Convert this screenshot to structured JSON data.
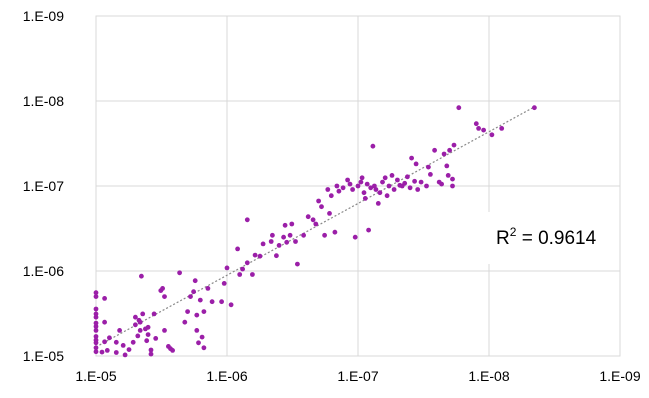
{
  "chart_data": {
    "type": "scatter",
    "title": "",
    "xlabel": "",
    "ylabel": "",
    "x_scale": "log-reversed",
    "y_scale": "log-reversed",
    "xlim": [
      1e-05,
      1e-09
    ],
    "ylim": [
      1e-05,
      1e-09
    ],
    "x_ticks": [
      "1.E-05",
      "1.E-06",
      "1.E-07",
      "1.E-08",
      "1.E-09"
    ],
    "y_ticks": [
      "1.E-05",
      "1.E-06",
      "1.E-07",
      "1.E-08",
      "1.E-09"
    ],
    "grid": true,
    "legend": "none",
    "marker_color": "#9b1fa8",
    "trendline": {
      "style": "dotted",
      "color": "#888888",
      "x_range": [
        1e-05,
        4.5e-09
      ]
    },
    "annotation": {
      "prefix": "R",
      "superscript": "2",
      "text": " = 0.9614"
    },
    "points": [
      [
        1e-05,
        8.9e-06
      ],
      [
        1e-05,
        8e-06
      ],
      [
        1e-05,
        7e-06
      ],
      [
        1e-05,
        6.5e-06
      ],
      [
        1e-05,
        5.9e-06
      ],
      [
        1e-05,
        5e-06
      ],
      [
        1e-05,
        4.5e-06
      ],
      [
        1e-05,
        4.1e-06
      ],
      [
        1e-05,
        3.5e-06
      ],
      [
        1e-05,
        3.2e-06
      ],
      [
        1e-05,
        2.8e-06
      ],
      [
        1e-05,
        2e-06
      ],
      [
        1e-05,
        1.8e-06
      ],
      [
        9e-06,
        9e-06
      ],
      [
        8.6e-06,
        6.8e-06
      ],
      [
        8.6e-06,
        4e-06
      ],
      [
        8.6e-06,
        2.1e-06
      ],
      [
        8.2e-06,
        8.6e-06
      ],
      [
        7.9e-06,
        6.1e-06
      ],
      [
        7e-06,
        9.1e-06
      ],
      [
        7e-06,
        6.9e-06
      ],
      [
        6.6e-06,
        5e-06
      ],
      [
        6.2e-06,
        7.5e-06
      ],
      [
        6e-06,
        9.7e-06
      ],
      [
        5.6e-06,
        8.4e-06
      ],
      [
        5.2e-06,
        6.9e-06
      ],
      [
        5e-06,
        4.3e-06
      ],
      [
        5e-06,
        3.5e-06
      ],
      [
        4.8e-06,
        5.8e-06
      ],
      [
        4.7e-06,
        3.8e-06
      ],
      [
        4.6e-06,
        4e-06
      ],
      [
        4.6e-06,
        5e-06
      ],
      [
        4.5e-06,
        1.15e-06
      ],
      [
        4.4e-06,
        3.2e-06
      ],
      [
        4.2e-06,
        4.8e-06
      ],
      [
        4.1e-06,
        6.6e-06
      ],
      [
        4e-06,
        4.6e-06
      ],
      [
        4e-06,
        5.6e-06
      ],
      [
        3.8e-06,
        8.5e-06
      ],
      [
        3.8e-06,
        9.5e-06
      ],
      [
        3.6e-06,
        3.2e-06
      ],
      [
        3.5e-06,
        6.2e-06
      ],
      [
        3.2e-06,
        1.7e-06
      ],
      [
        3.1e-06,
        1.6e-06
      ],
      [
        3e-06,
        2e-06
      ],
      [
        3e-06,
        5e-06
      ],
      [
        2.8e-06,
        7.7e-06
      ],
      [
        2.7e-06,
        8.2e-06
      ],
      [
        2.6e-06,
        8.6e-06
      ],
      [
        2.3e-06,
        1.05e-06
      ],
      [
        2.1e-06,
        4e-06
      ],
      [
        2e-06,
        3e-06
      ],
      [
        1.9e-06,
        2e-06
      ],
      [
        1.8e-06,
        1.75e-06
      ],
      [
        1.75e-06,
        1.3e-06
      ],
      [
        1.7e-06,
        3.3e-06
      ],
      [
        1.7e-06,
        5e-06
      ],
      [
        1.65e-06,
        7e-06
      ],
      [
        1.6e-06,
        2.2e-06
      ],
      [
        1.55e-06,
        6e-06
      ],
      [
        1.5e-06,
        3e-06
      ],
      [
        1.5e-06,
        8e-06
      ],
      [
        1.4e-06,
        1.6e-06
      ],
      [
        1.3e-06,
        2.3e-06
      ],
      [
        1.1e-06,
        2.3e-06
      ],
      [
        1.05e-06,
        1.4e-06
      ],
      [
        1e-06,
        9.2e-07
      ],
      [
        9.3e-07,
        2.5e-06
      ],
      [
        8.3e-07,
        5.5e-07
      ],
      [
        8e-07,
        1.1e-06
      ],
      [
        7.6e-07,
        9.5e-07
      ],
      [
        7e-07,
        8e-07
      ],
      [
        7e-07,
        2.5e-07
      ],
      [
        6.4e-07,
        1.1e-06
      ],
      [
        6.1e-07,
        6.5e-07
      ],
      [
        5.6e-07,
        6.7e-07
      ],
      [
        5.3e-07,
        4.8e-07
      ],
      [
        4.6e-07,
        4.5e-07
      ],
      [
        4.5e-07,
        3.8e-07
      ],
      [
        4.2e-07,
        6.6e-07
      ],
      [
        4e-07,
        5e-07
      ],
      [
        3.7e-07,
        4e-07
      ],
      [
        3.6e-07,
        2.9e-07
      ],
      [
        3.5e-07,
        4.6e-07
      ],
      [
        3.3e-07,
        3.8e-07
      ],
      [
        3.2e-07,
        2.8e-07
      ],
      [
        3e-07,
        4.5e-07
      ],
      [
        2.9e-07,
        8.3e-07
      ],
      [
        2.6e-07,
        3.8e-07
      ],
      [
        2.4e-07,
        2.3e-07
      ],
      [
        2.2e-07,
        2.5e-07
      ],
      [
        2.1e-07,
        2.8e-07
      ],
      [
        2e-07,
        1.5e-07
      ],
      [
        1.9e-07,
        1.75e-07
      ],
      [
        1.8e-07,
        3.8e-07
      ],
      [
        1.7e-07,
        1.1e-07
      ],
      [
        1.65e-07,
        2.1e-07
      ],
      [
        1.6e-07,
        1.3e-07
      ],
      [
        1.5e-07,
        3.5e-07
      ],
      [
        1.45e-07,
        1e-07
      ],
      [
        1.4e-07,
        1.15e-07
      ],
      [
        1.3e-07,
        1.05e-07
      ],
      [
        1.2e-07,
        8.5e-08
      ],
      [
        1.15e-07,
        9.5e-08
      ],
      [
        1.1e-07,
        1.1e-07
      ],
      [
        1.05e-07,
        4e-07
      ],
      [
        1e-07,
        1e-07
      ],
      [
        9.5e-08,
        9e-08
      ],
      [
        9.3e-08,
        8e-08
      ],
      [
        9e-08,
        1.2e-07
      ],
      [
        8.8e-08,
        1.4e-07
      ],
      [
        8.5e-08,
        9.5e-08
      ],
      [
        8.3e-08,
        3.3e-07
      ],
      [
        8e-08,
        1.05e-07
      ],
      [
        7.7e-08,
        3.4e-08
      ],
      [
        7.5e-08,
        1e-07
      ],
      [
        7.3e-08,
        1.1e-07
      ],
      [
        7e-08,
        1.6e-07
      ],
      [
        6.8e-08,
        1.2e-07
      ],
      [
        6.5e-08,
        9e-08
      ],
      [
        6.2e-08,
        8e-08
      ],
      [
        6e-08,
        1.3e-07
      ],
      [
        5.8e-08,
        1e-07
      ],
      [
        5.5e-08,
        7.5e-08
      ],
      [
        5.3e-08,
        1.1e-07
      ],
      [
        5e-08,
        8.5e-08
      ],
      [
        4.8e-08,
        9.8e-08
      ],
      [
        4.6e-08,
        1e-07
      ],
      [
        4.4e-08,
        9.3e-08
      ],
      [
        4.2e-08,
        7.8e-08
      ],
      [
        4e-08,
        1.05e-07
      ],
      [
        3.9e-08,
        4.7e-08
      ],
      [
        3.7e-08,
        8.8e-08
      ],
      [
        3.6e-08,
        5.5e-08
      ],
      [
        3.5e-08,
        1.1e-07
      ],
      [
        3.3e-08,
        9e-08
      ],
      [
        3e-08,
        1e-07
      ],
      [
        2.9e-08,
        6e-08
      ],
      [
        2.8e-08,
        7.3e-08
      ],
      [
        2.6e-08,
        3.8e-08
      ],
      [
        2.4e-08,
        9e-08
      ],
      [
        2.3e-08,
        9.5e-08
      ],
      [
        2.2e-08,
        4.2e-08
      ],
      [
        2.1e-08,
        5.8e-08
      ],
      [
        2.05e-08,
        7.5e-08
      ],
      [
        2e-08,
        3.8e-08
      ],
      [
        1.9e-08,
        8.3e-08
      ],
      [
        1.9e-08,
        1e-07
      ],
      [
        1.85e-08,
        3.3e-08
      ],
      [
        1.7e-08,
        1.2e-08
      ],
      [
        1.25e-08,
        1.85e-08
      ],
      [
        1.2e-08,
        2.1e-08
      ],
      [
        1.1e-08,
        2.2e-08
      ],
      [
        9.5e-09,
        2.5e-08
      ],
      [
        8e-09,
        2.1e-08
      ],
      [
        4.5e-09,
        1.2e-08
      ]
    ]
  }
}
